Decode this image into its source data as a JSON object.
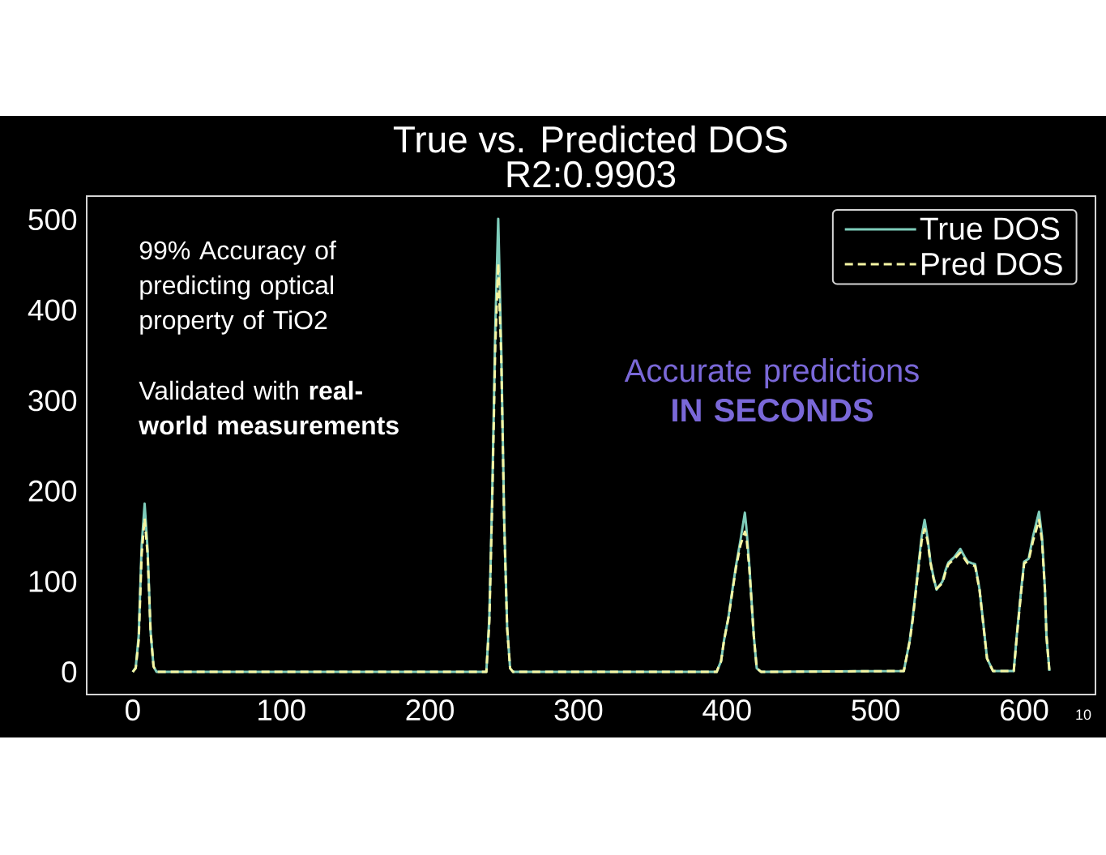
{
  "chart_data": {
    "type": "line",
    "title": "True vs. Predicted DOS",
    "subtitle": "R2:0.9903",
    "x": [
      0,
      2,
      4,
      6,
      8,
      10,
      12,
      14,
      16,
      238,
      240,
      242,
      244,
      246,
      248,
      250,
      252,
      254,
      256,
      393,
      396,
      398,
      401,
      404,
      406,
      409,
      412,
      413,
      415,
      418,
      420,
      423,
      519,
      523,
      525,
      528,
      531,
      533,
      535,
      537,
      539,
      541,
      545,
      547,
      549,
      553,
      557,
      560,
      562,
      565,
      567,
      570,
      573,
      575,
      579,
      593,
      595,
      598,
      600,
      603,
      606,
      610,
      612,
      614,
      615,
      617
    ],
    "series": [
      {
        "name": "True DOS",
        "color": "#7fcdbb",
        "line_style": "solid",
        "values": [
          0,
          5,
          40,
          140,
          186,
          135,
          45,
          6,
          0,
          0,
          60,
          200,
          380,
          501,
          360,
          170,
          50,
          4,
          0,
          0,
          12,
          35,
          61,
          95,
          117,
          145,
          176,
          160,
          118,
          40,
          4,
          0,
          1,
          35,
          60,
          105,
          150,
          168,
          148,
          121,
          105,
          91,
          100,
          112,
          121,
          127,
          136,
          127,
          122,
          120,
          119,
          91,
          46,
          15,
          1,
          1,
          40,
          91,
          122,
          125,
          150,
          177,
          150,
          91,
          40,
          1
        ]
      },
      {
        "name": "Pred DOS",
        "color": "#f5f5a3",
        "line_style": "dashed",
        "values": [
          0,
          4,
          35,
          130,
          170,
          130,
          45,
          6,
          0,
          0,
          55,
          190,
          360,
          452,
          350,
          165,
          48,
          4,
          0,
          0,
          12,
          35,
          60,
          93,
          115,
          140,
          155,
          150,
          115,
          40,
          4,
          0,
          1,
          34,
          58,
          102,
          145,
          158,
          145,
          120,
          103,
          92,
          98,
          110,
          119,
          125,
          132,
          125,
          120,
          118,
          117,
          90,
          45,
          15,
          1,
          1,
          38,
          89,
          120,
          123,
          145,
          168,
          145,
          90,
          40,
          1
        ]
      }
    ],
    "xlim": [
      -31,
      648
    ],
    "ylim": [
      -25,
      526
    ],
    "xticks": [
      0,
      100,
      200,
      300,
      400,
      500,
      600
    ],
    "yticks": [
      0,
      100,
      200,
      300,
      400,
      500
    ],
    "legend": "top right",
    "annotations": [
      "99% Accuracy of predicting optical property of TiO2",
      "Validated with **real-world measurements**",
      "Accurate predictions **IN SECONDS**",
      "10"
    ]
  }
}
